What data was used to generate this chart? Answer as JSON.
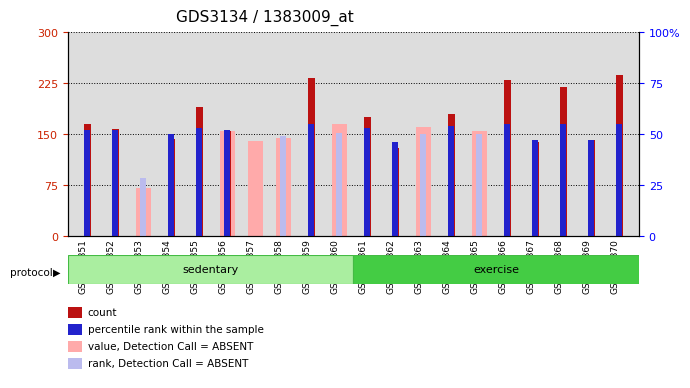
{
  "title": "GDS3134 / 1383009_at",
  "samples": [
    "GSM184851",
    "GSM184852",
    "GSM184853",
    "GSM184854",
    "GSM184855",
    "GSM184856",
    "GSM184857",
    "GSM184858",
    "GSM184859",
    "GSM184860",
    "GSM184861",
    "GSM184862",
    "GSM184863",
    "GSM184864",
    "GSM184865",
    "GSM184866",
    "GSM184867",
    "GSM184868",
    "GSM184869",
    "GSM184870"
  ],
  "count": [
    165,
    158,
    0,
    143,
    190,
    155,
    0,
    0,
    233,
    0,
    175,
    130,
    0,
    180,
    0,
    230,
    138,
    220,
    142,
    237
  ],
  "rank_pct": [
    52,
    52,
    0,
    50,
    53,
    52,
    0,
    0,
    55,
    0,
    53,
    46,
    0,
    54,
    0,
    55,
    47,
    55,
    47,
    55
  ],
  "value_absent": [
    0,
    0,
    70,
    0,
    0,
    155,
    140,
    145,
    0,
    165,
    0,
    0,
    160,
    0,
    155,
    0,
    0,
    0,
    0,
    0
  ],
  "rank_absent": [
    0,
    0,
    85,
    0,
    0,
    0,
    0,
    148,
    0,
    152,
    0,
    0,
    150,
    0,
    150,
    0,
    0,
    0,
    0,
    0
  ],
  "ylim_left": [
    0,
    300
  ],
  "ylim_right": [
    0,
    100
  ],
  "yticks_left": [
    0,
    75,
    150,
    225,
    300
  ],
  "ytick_labels_left": [
    "0",
    "75",
    "150",
    "225",
    "300"
  ],
  "yticks_right": [
    0,
    25,
    50,
    75,
    100
  ],
  "ytick_labels_right": [
    "0",
    "25",
    "50",
    "75",
    "100%"
  ],
  "bar_color_count": "#bb1111",
  "bar_color_value_absent": "#ffaaaa",
  "bar_color_rank": "#2222cc",
  "bar_color_rank_absent": "#bbbbee",
  "background_plot": "#dddddd",
  "bar_width": 0.55
}
